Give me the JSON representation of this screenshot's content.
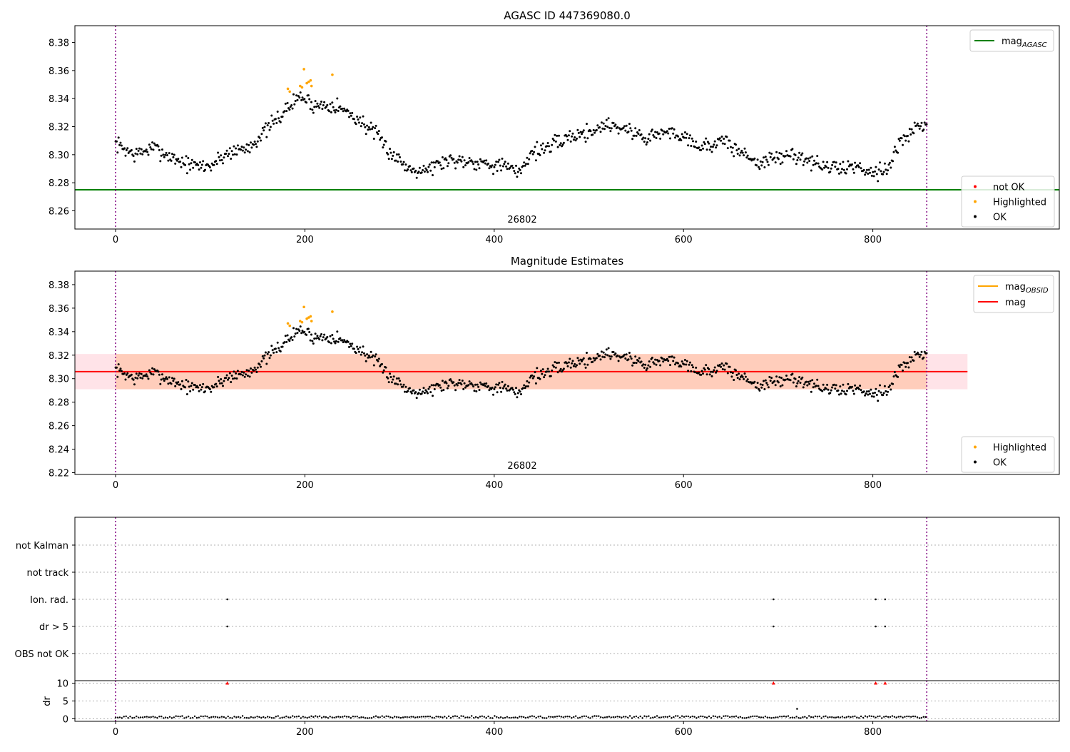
{
  "chart_data": [
    {
      "type": "scatter",
      "title": "AGASC ID 447369080.0",
      "annotation": "26802",
      "xlim": [
        -43,
        997
      ],
      "ylim": [
        8.247,
        8.392
      ],
      "xticks": [
        0,
        200,
        400,
        600,
        800
      ],
      "yticks": [
        8.26,
        8.28,
        8.3,
        8.32,
        8.34,
        8.36,
        8.38
      ],
      "grid": false,
      "vlines": [
        0,
        857
      ],
      "hline": {
        "name": "mag_AGASC",
        "y": 8.275,
        "color": "#008000"
      },
      "legend_top": {
        "placement": "top-right",
        "entries": [
          {
            "label": "mag",
            "sub": "AGASC",
            "color": "#008000",
            "kind": "line"
          }
        ]
      },
      "legend_bottom": {
        "placement": "lower-right",
        "entries": [
          {
            "label": "not OK",
            "color": "#ff0000",
            "kind": "dot"
          },
          {
            "label": "Highlighted",
            "color": "#ffa500",
            "kind": "dot"
          },
          {
            "label": "OK",
            "color": "#000000",
            "kind": "dot"
          }
        ]
      },
      "highlighted": [
        [
          182,
          8.347
        ],
        [
          184,
          8.345
        ],
        [
          195,
          8.349
        ],
        [
          197,
          8.348
        ],
        [
          199,
          8.361
        ],
        [
          202,
          8.351
        ],
        [
          204,
          8.352
        ],
        [
          206,
          8.353
        ],
        [
          207,
          8.349
        ],
        [
          229,
          8.357
        ]
      ],
      "ok_trend": [
        [
          0,
          8.308
        ],
        [
          20,
          8.3
        ],
        [
          40,
          8.305
        ],
        [
          60,
          8.298
        ],
        [
          80,
          8.292
        ],
        [
          100,
          8.292
        ],
        [
          120,
          8.302
        ],
        [
          140,
          8.305
        ],
        [
          160,
          8.318
        ],
        [
          180,
          8.332
        ],
        [
          195,
          8.342
        ],
        [
          210,
          8.335
        ],
        [
          230,
          8.336
        ],
        [
          250,
          8.328
        ],
        [
          270,
          8.318
        ],
        [
          290,
          8.302
        ],
        [
          310,
          8.29
        ],
        [
          330,
          8.29
        ],
        [
          350,
          8.296
        ],
        [
          370,
          8.296
        ],
        [
          390,
          8.294
        ],
        [
          410,
          8.292
        ],
        [
          425,
          8.287
        ],
        [
          440,
          8.302
        ],
        [
          460,
          8.306
        ],
        [
          480,
          8.313
        ],
        [
          500,
          8.316
        ],
        [
          520,
          8.322
        ],
        [
          540,
          8.318
        ],
        [
          560,
          8.312
        ],
        [
          580,
          8.316
        ],
        [
          600,
          8.314
        ],
        [
          620,
          8.305
        ],
        [
          640,
          8.31
        ],
        [
          660,
          8.302
        ],
        [
          680,
          8.294
        ],
        [
          700,
          8.298
        ],
        [
          720,
          8.3
        ],
        [
          740,
          8.293
        ],
        [
          760,
          8.29
        ],
        [
          780,
          8.292
        ],
        [
          800,
          8.288
        ],
        [
          815,
          8.29
        ],
        [
          830,
          8.31
        ],
        [
          845,
          8.318
        ],
        [
          857,
          8.322
        ]
      ],
      "ok_seed": 7,
      "ok_noise": 0.0065
    },
    {
      "type": "scatter",
      "title": "Magnitude Estimates",
      "annotation": "26802",
      "xlim": [
        -43,
        997
      ],
      "ylim": [
        8.2185,
        8.3915
      ],
      "xticks": [
        0,
        200,
        400,
        600,
        800
      ],
      "yticks": [
        8.22,
        8.24,
        8.26,
        8.28,
        8.3,
        8.32,
        8.34,
        8.36,
        8.38
      ],
      "grid": false,
      "vlines": [
        0,
        857
      ],
      "hline": {
        "name": "mag",
        "y": 8.306,
        "color": "#ff0000",
        "x_range": [
          -43,
          900
        ]
      },
      "bands": [
        {
          "x_range": [
            -43,
            900
          ],
          "y_range": [
            8.291,
            8.321
          ],
          "color": "#ffc0cb",
          "opacity": 0.45
        },
        {
          "x_range": [
            0,
            857
          ],
          "y_range": [
            8.291,
            8.321
          ],
          "color": "#ffa366",
          "opacity": 0.35
        }
      ],
      "legend_top": {
        "placement": "top-right",
        "entries": [
          {
            "label": "mag",
            "sub": "OBSID",
            "color": "#ffa500",
            "kind": "line"
          },
          {
            "label": "mag",
            "sub": "",
            "color": "#ff0000",
            "kind": "line"
          }
        ]
      },
      "legend_bottom": {
        "placement": "lower-right",
        "entries": [
          {
            "label": "Highlighted",
            "color": "#ffa500",
            "kind": "dot"
          },
          {
            "label": "OK",
            "color": "#000000",
            "kind": "dot"
          }
        ]
      },
      "same_points_as_panel": 0
    },
    {
      "type": "scatter",
      "xlim": [
        -43,
        997
      ],
      "vlines": [
        0,
        857
      ],
      "flag_categories": [
        "OBS not OK",
        "dr > 5",
        "Ion. rad.",
        "not track",
        "not Kalman"
      ],
      "flag_points": [
        {
          "category": "Ion. rad.",
          "x": [
            118,
            695,
            803,
            813
          ]
        },
        {
          "category": "dr > 5",
          "x": [
            118,
            695,
            803,
            813
          ]
        }
      ],
      "dr_panel": {
        "ylabel": "dr",
        "ylim": [
          -0.7,
          10.7
        ],
        "yticks": [
          0,
          5,
          10
        ],
        "xticks": [
          0,
          200,
          400,
          600,
          800
        ],
        "clipped_red_x": [
          118,
          695,
          803,
          813
        ],
        "clipped_value": 10,
        "outlier": [
          720,
          2.8
        ],
        "baseline": 0.5
      }
    }
  ]
}
